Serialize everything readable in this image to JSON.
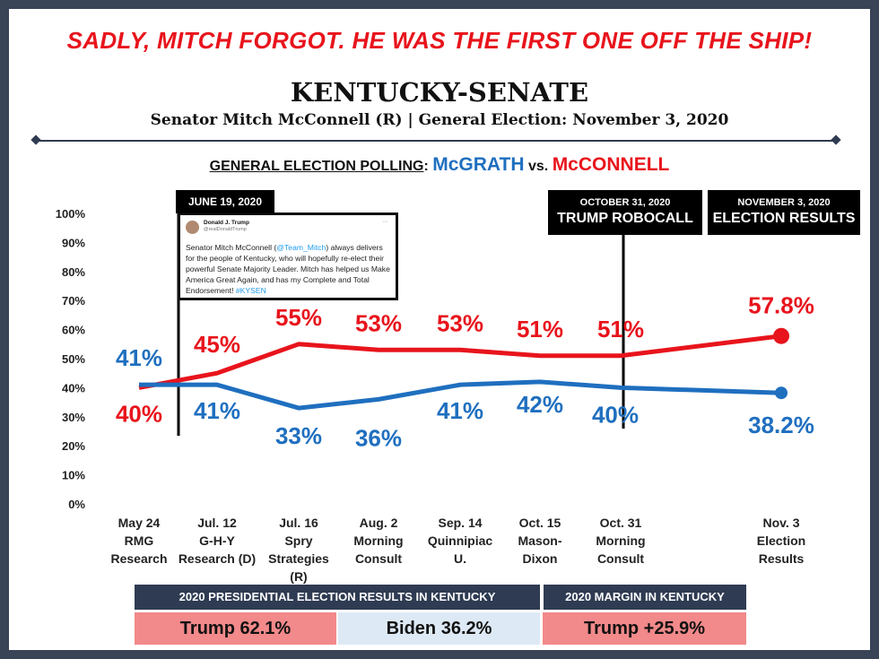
{
  "header": {
    "tagline": "SADLY, MITCH FORGOT. HE WAS THE FIRST ONE OFF THE SHIP!",
    "title": "KENTUCKY-SENATE",
    "subtitle": "Senator Mitch McConnell (R) | General Election: November 3, 2020"
  },
  "polling_heading": {
    "label": "GENERAL ELECTION POLLING",
    "colon": ":",
    "candidate_a": "McGRATH",
    "vs": "vs.",
    "candidate_b": "McCONNELL"
  },
  "annotations": {
    "june": {
      "date": "JUNE 19, 2020"
    },
    "october": {
      "date": "OCTOBER 31, 2020",
      "event": "TRUMP ROBOCALL"
    },
    "november": {
      "date": "NOVEMBER 3, 2020",
      "event": "ELECTION RESULTS"
    }
  },
  "tweet": {
    "name": "Donald J. Trump",
    "handle": "@realDonaldTrump",
    "menu": "···",
    "text_1": "Senator Mitch McConnell (",
    "mention": "@Team_Mitch",
    "text_2": ") always delivers for the people of Kentucky, who will hopefully re-elect their powerful Senate Majority Leader. Mitch has helped us Make America Great Again, and has my Complete and Total Endorsement! ",
    "hashtag": "#KYSEN"
  },
  "results": {
    "presidential_header": "2020 PRESIDENTIAL ELECTION RESULTS IN KENTUCKY",
    "margin_header": "2020 MARGIN IN KENTUCKY",
    "trump": "Trump 62.1%",
    "biden": "Biden 36.2%",
    "margin": "Trump +25.9%"
  },
  "chart_data": {
    "type": "line",
    "ylim": [
      0,
      100
    ],
    "yticks": [
      "0%",
      "10%",
      "20%",
      "30%",
      "40%",
      "50%",
      "60%",
      "70%",
      "80%",
      "90%",
      "100%"
    ],
    "categories": [
      [
        "May 24",
        "RMG",
        "Research"
      ],
      [
        "Jul. 12",
        "G-H-Y",
        "Research (D)"
      ],
      [
        "Jul. 16",
        "Spry",
        "Strategies",
        "(R)"
      ],
      [
        "Aug. 2",
        "Morning",
        "Consult"
      ],
      [
        "Sep. 14",
        "Quinnipiac",
        "U."
      ],
      [
        "Oct. 15",
        "Mason-",
        "Dixon"
      ],
      [
        "Oct. 31",
        "Morning",
        "Consult"
      ],
      [
        "Nov. 3",
        "Election",
        "Results"
      ]
    ],
    "series": [
      {
        "name": "McCONNELL",
        "color": "#e8141c",
        "values": [
          40,
          45,
          55,
          53,
          53,
          51,
          51,
          57.8
        ],
        "labels": [
          "40%",
          "45%",
          "55%",
          "53%",
          "53%",
          "51%",
          "51%",
          "57.8%"
        ]
      },
      {
        "name": "McGRATH",
        "color": "#1f6fbf",
        "values": [
          41,
          41,
          33,
          36,
          41,
          42,
          40,
          38.2
        ],
        "labels": [
          "41%",
          "41%",
          "33%",
          "36%",
          "41%",
          "42%",
          "40%",
          "38.2%"
        ]
      }
    ],
    "grid": false
  }
}
